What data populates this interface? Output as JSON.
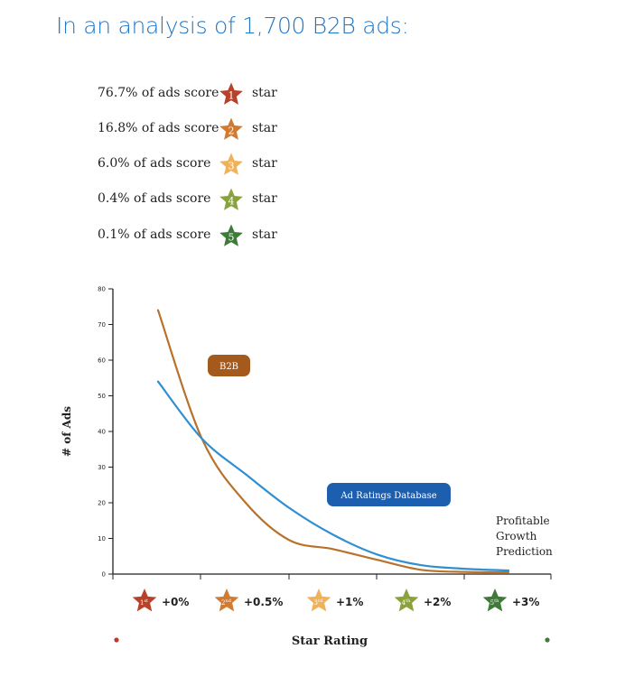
{
  "headline": "In an analysis of 1,700 B2B ads:",
  "star_scores": [
    {
      "text": "76.7% of ads score",
      "stars": "1",
      "suffix": "star",
      "color": "#b8412a"
    },
    {
      "text": "16.8% of ads score",
      "stars": "2",
      "suffix": "star",
      "color": "#d07a32"
    },
    {
      "text": "6.0% of ads score",
      "stars": "3",
      "suffix": "star",
      "color": "#efb25a"
    },
    {
      "text": "0.4% of ads score",
      "stars": "4",
      "suffix": "star",
      "color": "#8aa23c"
    },
    {
      "text": "0.1% of ads score",
      "stars": "5",
      "suffix": "star",
      "color": "#3f7a38"
    }
  ],
  "chart_data": {
    "type": "line",
    "ylabel": "# of Ads",
    "xlabel": "Star Rating",
    "ylim": [
      0,
      80
    ],
    "yticks": [
      0,
      10,
      20,
      30,
      40,
      50,
      60,
      70,
      80
    ],
    "categories": [
      {
        "star": "1",
        "sup": "st",
        "label": "+0%",
        "color": "#b8412a"
      },
      {
        "star": "2",
        "sup": "nd",
        "label": "+0.5%",
        "color": "#d07a32"
      },
      {
        "star": "3",
        "sup": "rd",
        "label": "+1%",
        "color": "#efb25a"
      },
      {
        "star": "4",
        "sup": "th",
        "label": "+2%",
        "color": "#8aa23c"
      },
      {
        "star": "5",
        "sup": "th",
        "label": "+3%",
        "color": "#3f7a38"
      }
    ],
    "x": [
      1,
      1.5,
      2,
      2.5,
      3,
      3.5,
      4,
      4.5,
      5
    ],
    "series": [
      {
        "name": "B2B",
        "color": "#b8722c",
        "label_color": "#a55a1d",
        "values": [
          74,
          38,
          20,
          9.5,
          7,
          4,
          1.2,
          0.6,
          0.5
        ]
      },
      {
        "name": "Ad Ratings Database",
        "color": "#2f8fd0",
        "label_color": "#1d5fae",
        "values": [
          54,
          38,
          28,
          18.5,
          11,
          5.5,
          2.5,
          1.5,
          1
        ]
      }
    ],
    "end_annotation": [
      "Profitable",
      "Growth",
      "Prediction"
    ]
  }
}
